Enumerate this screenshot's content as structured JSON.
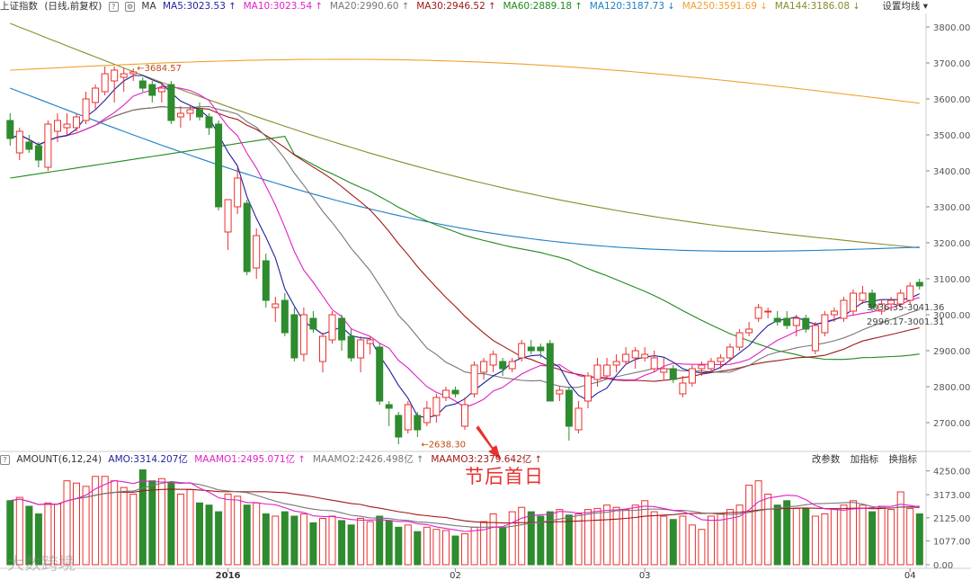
{
  "header": {
    "symbol": "上证指数",
    "mode": "(日线,前复权)",
    "help_icon": "?",
    "indicator": "MA",
    "ma": [
      {
        "label": "MA5:3023.53",
        "arrow": "↑",
        "color": "#1f1f9f"
      },
      {
        "label": "MA10:3023.54",
        "arrow": "↑",
        "color": "#e020c8"
      },
      {
        "label": "MA20:2990.60",
        "arrow": "↑",
        "color": "#777777"
      },
      {
        "label": "MA30:2946.52",
        "arrow": "↑",
        "color": "#a01818"
      },
      {
        "label": "MA60:2889.18",
        "arrow": "↑",
        "color": "#1f8a1f"
      },
      {
        "label": "MA120:3187.73",
        "arrow": "↓",
        "color": "#1d7fc4"
      },
      {
        "label": "MA250:3591.69",
        "arrow": "↓",
        "color": "#f0a030"
      },
      {
        "label": "MA144:3186.08",
        "arrow": "↓",
        "color": "#8a8a2a"
      }
    ],
    "settings_label": "设置均线",
    "settings_caret": "▾"
  },
  "sub_header": {
    "indicator": "AMOUNT(6,12,24)",
    "amo": "AMO:3314.207亿",
    "maamo": [
      {
        "label": "MAAMO1:2495.071亿",
        "arrow": "↑",
        "color": "#e020c8"
      },
      {
        "label": "MAAMO2:2426.498亿",
        "arrow": "↑",
        "color": "#777777"
      },
      {
        "label": "MAAMO3:2379.642亿",
        "arrow": "↑",
        "color": "#a01818"
      }
    ],
    "buttons": [
      "改参数",
      "加指标",
      "换指标"
    ]
  },
  "callout": "节后首日",
  "watermark": "大数跨境",
  "colors": {
    "up": "#e8312f",
    "down": "#2e8b2e",
    "grid": "#e6e6e6",
    "axis": "#888888"
  },
  "chart_data": {
    "type": "candlestick",
    "price_axis": {
      "ticks": [
        3800,
        3700,
        3600,
        3500,
        3400,
        3300,
        3200,
        3100,
        3000,
        2900,
        2800,
        2700
      ],
      "labels": [
        "3800.00",
        "3700.00",
        "3600.00",
        "3500.00",
        "3400.00",
        "3300.00",
        "3200.00",
        "3100.00",
        "3000.00",
        "2900.00",
        "2800.00",
        "2700.00"
      ],
      "range": [
        2630,
        3830
      ]
    },
    "volume_axis": {
      "ticks": [
        4250,
        3173,
        2125,
        1077,
        0
      ],
      "labels": [
        "4250.00",
        "3173.00",
        "2125.00",
        "1077.00",
        "0.00"
      ],
      "range": [
        0,
        4400
      ]
    },
    "date_labels": [
      {
        "label": "2016",
        "index": 23
      },
      {
        "label": "02",
        "index": 47
      },
      {
        "label": "03",
        "index": 67
      },
      {
        "label": "04",
        "index": 95
      }
    ],
    "annotations": [
      {
        "label": "←3684.57",
        "index": 13,
        "value": 3684.57
      },
      {
        "label": "←2638.30",
        "index": 43,
        "value": 2638.3
      }
    ],
    "last_labels": [
      "3036.35-3041.36",
      "2996.17-3001.31"
    ],
    "candles": [
      {
        "o": 3540,
        "h": 3560,
        "l": 3470,
        "c": 3490,
        "v": 2900
      },
      {
        "o": 3450,
        "h": 3520,
        "l": 3430,
        "c": 3510,
        "v": 3050
      },
      {
        "o": 3480,
        "h": 3500,
        "l": 3450,
        "c": 3460,
        "v": 2650
      },
      {
        "o": 3470,
        "h": 3480,
        "l": 3410,
        "c": 3430,
        "v": 2300
      },
      {
        "o": 3410,
        "h": 3540,
        "l": 3400,
        "c": 3530,
        "v": 2800
      },
      {
        "o": 3510,
        "h": 3560,
        "l": 3480,
        "c": 3540,
        "v": 2750
      },
      {
        "o": 3520,
        "h": 3560,
        "l": 3500,
        "c": 3530,
        "v": 3800
      },
      {
        "o": 3520,
        "h": 3560,
        "l": 3510,
        "c": 3550,
        "v": 3700
      },
      {
        "o": 3540,
        "h": 3620,
        "l": 3530,
        "c": 3600,
        "v": 3550
      },
      {
        "o": 3590,
        "h": 3640,
        "l": 3570,
        "c": 3630,
        "v": 4000
      },
      {
        "o": 3620,
        "h": 3690,
        "l": 3610,
        "c": 3670,
        "v": 4000
      },
      {
        "o": 3650,
        "h": 3690,
        "l": 3590,
        "c": 3680,
        "v": 3800
      },
      {
        "o": 3660,
        "h": 3685,
        "l": 3620,
        "c": 3670,
        "v": 3500
      },
      {
        "o": 3670,
        "h": 3685,
        "l": 3650,
        "c": 3675,
        "v": 3200
      },
      {
        "o": 3650,
        "h": 3660,
        "l": 3620,
        "c": 3630,
        "v": 4300
      },
      {
        "o": 3640,
        "h": 3650,
        "l": 3590,
        "c": 3610,
        "v": 3800
      },
      {
        "o": 3620,
        "h": 3640,
        "l": 3590,
        "c": 3630,
        "v": 3900
      },
      {
        "o": 3640,
        "h": 3650,
        "l": 3530,
        "c": 3540,
        "v": 3700
      },
      {
        "o": 3550,
        "h": 3580,
        "l": 3520,
        "c": 3560,
        "v": 3200
      },
      {
        "o": 3560,
        "h": 3580,
        "l": 3540,
        "c": 3570,
        "v": 3400
      },
      {
        "o": 3570,
        "h": 3590,
        "l": 3540,
        "c": 3550,
        "v": 2800
      },
      {
        "o": 3550,
        "h": 3560,
        "l": 3500,
        "c": 3520,
        "v": 2700
      },
      {
        "o": 3530,
        "h": 3540,
        "l": 3290,
        "c": 3300,
        "v": 2400
      },
      {
        "o": 3230,
        "h": 3320,
        "l": 3180,
        "c": 3320,
        "v": 3200
      },
      {
        "o": 3300,
        "h": 3410,
        "l": 3280,
        "c": 3380,
        "v": 3100
      },
      {
        "o": 3310,
        "h": 3320,
        "l": 3110,
        "c": 3120,
        "v": 2700
      },
      {
        "o": 3130,
        "h": 3240,
        "l": 3100,
        "c": 3220,
        "v": 2800
      },
      {
        "o": 3150,
        "h": 3170,
        "l": 3020,
        "c": 3040,
        "v": 2300
      },
      {
        "o": 3020,
        "h": 3050,
        "l": 2980,
        "c": 3030,
        "v": 2200
      },
      {
        "o": 3040,
        "h": 3060,
        "l": 2940,
        "c": 2950,
        "v": 2400
      },
      {
        "o": 3000,
        "h": 3020,
        "l": 2870,
        "c": 2880,
        "v": 2200
      },
      {
        "o": 2890,
        "h": 3020,
        "l": 2870,
        "c": 3000,
        "v": 2300
      },
      {
        "o": 2990,
        "h": 3010,
        "l": 2950,
        "c": 2960,
        "v": 1900
      },
      {
        "o": 2870,
        "h": 2950,
        "l": 2840,
        "c": 2940,
        "v": 2100
      },
      {
        "o": 2930,
        "h": 3010,
        "l": 2920,
        "c": 3000,
        "v": 2200
      },
      {
        "o": 2990,
        "h": 3000,
        "l": 2900,
        "c": 2930,
        "v": 2000
      },
      {
        "o": 2940,
        "h": 2960,
        "l": 2870,
        "c": 2880,
        "v": 1800
      },
      {
        "o": 2880,
        "h": 2940,
        "l": 2840,
        "c": 2930,
        "v": 2100
      },
      {
        "o": 2920,
        "h": 2940,
        "l": 2890,
        "c": 2930,
        "v": 1950
      },
      {
        "o": 2910,
        "h": 2920,
        "l": 2750,
        "c": 2760,
        "v": 2200
      },
      {
        "o": 2750,
        "h": 2760,
        "l": 2690,
        "c": 2740,
        "v": 2000
      },
      {
        "o": 2720,
        "h": 2730,
        "l": 2640,
        "c": 2660,
        "v": 1700
      },
      {
        "o": 2680,
        "h": 2760,
        "l": 2670,
        "c": 2750,
        "v": 1800
      },
      {
        "o": 2720,
        "h": 2730,
        "l": 2660,
        "c": 2680,
        "v": 1500
      },
      {
        "o": 2700,
        "h": 2760,
        "l": 2690,
        "c": 2740,
        "v": 1700
      },
      {
        "o": 2720,
        "h": 2780,
        "l": 2700,
        "c": 2770,
        "v": 1600
      },
      {
        "o": 2770,
        "h": 2800,
        "l": 2760,
        "c": 2790,
        "v": 1550
      },
      {
        "o": 2790,
        "h": 2800,
        "l": 2770,
        "c": 2780,
        "v": 1300
      },
      {
        "o": 2690,
        "h": 2770,
        "l": 2680,
        "c": 2750,
        "v": 1400
      },
      {
        "o": 2780,
        "h": 2870,
        "l": 2770,
        "c": 2860,
        "v": 1700
      },
      {
        "o": 2840,
        "h": 2880,
        "l": 2820,
        "c": 2870,
        "v": 1950
      },
      {
        "o": 2860,
        "h": 2900,
        "l": 2840,
        "c": 2890,
        "v": 2300
      },
      {
        "o": 2870,
        "h": 2880,
        "l": 2830,
        "c": 2850,
        "v": 1700
      },
      {
        "o": 2850,
        "h": 2880,
        "l": 2840,
        "c": 2870,
        "v": 2400
      },
      {
        "o": 2880,
        "h": 2930,
        "l": 2870,
        "c": 2920,
        "v": 2600
      },
      {
        "o": 2910,
        "h": 2930,
        "l": 2890,
        "c": 2900,
        "v": 2400
      },
      {
        "o": 2910,
        "h": 2920,
        "l": 2880,
        "c": 2900,
        "v": 2200
      },
      {
        "o": 2920,
        "h": 2930,
        "l": 2760,
        "c": 2760,
        "v": 2400
      },
      {
        "o": 2780,
        "h": 2800,
        "l": 2760,
        "c": 2790,
        "v": 2500
      },
      {
        "o": 2790,
        "h": 2800,
        "l": 2650,
        "c": 2690,
        "v": 2250
      },
      {
        "o": 2680,
        "h": 2760,
        "l": 2670,
        "c": 2740,
        "v": 2300
      },
      {
        "o": 2760,
        "h": 2840,
        "l": 2740,
        "c": 2830,
        "v": 2500
      },
      {
        "o": 2820,
        "h": 2880,
        "l": 2800,
        "c": 2860,
        "v": 2550
      },
      {
        "o": 2830,
        "h": 2880,
        "l": 2820,
        "c": 2860,
        "v": 2700
      },
      {
        "o": 2860,
        "h": 2890,
        "l": 2840,
        "c": 2870,
        "v": 2600
      },
      {
        "o": 2870,
        "h": 2910,
        "l": 2860,
        "c": 2890,
        "v": 2500
      },
      {
        "o": 2880,
        "h": 2910,
        "l": 2850,
        "c": 2900,
        "v": 2700
      },
      {
        "o": 2880,
        "h": 2910,
        "l": 2870,
        "c": 2890,
        "v": 2900
      },
      {
        "o": 2850,
        "h": 2900,
        "l": 2840,
        "c": 2880,
        "v": 2400
      },
      {
        "o": 2840,
        "h": 2880,
        "l": 2820,
        "c": 2850,
        "v": 2200
      },
      {
        "o": 2850,
        "h": 2860,
        "l": 2810,
        "c": 2820,
        "v": 2050
      },
      {
        "o": 2780,
        "h": 2830,
        "l": 2770,
        "c": 2810,
        "v": 2200
      },
      {
        "o": 2810,
        "h": 2860,
        "l": 2800,
        "c": 2850,
        "v": 1800
      },
      {
        "o": 2850,
        "h": 2870,
        "l": 2830,
        "c": 2860,
        "v": 1600
      },
      {
        "o": 2850,
        "h": 2880,
        "l": 2840,
        "c": 2870,
        "v": 2200
      },
      {
        "o": 2870,
        "h": 2890,
        "l": 2850,
        "c": 2880,
        "v": 2300
      },
      {
        "o": 2880,
        "h": 2920,
        "l": 2870,
        "c": 2910,
        "v": 2500
      },
      {
        "o": 2910,
        "h": 2960,
        "l": 2900,
        "c": 2950,
        "v": 2700
      },
      {
        "o": 2950,
        "h": 2980,
        "l": 2940,
        "c": 2960,
        "v": 3600
      },
      {
        "o": 2990,
        "h": 3030,
        "l": 2980,
        "c": 3020,
        "v": 3800
      },
      {
        "o": 3010,
        "h": 3020,
        "l": 2990,
        "c": 3010,
        "v": 3200
      },
      {
        "o": 2990,
        "h": 3010,
        "l": 2970,
        "c": 2980,
        "v": 2700
      },
      {
        "o": 2990,
        "h": 3010,
        "l": 2960,
        "c": 2970,
        "v": 2900
      },
      {
        "o": 2970,
        "h": 3000,
        "l": 2940,
        "c": 2990,
        "v": 2550
      },
      {
        "o": 2990,
        "h": 3000,
        "l": 2950,
        "c": 2960,
        "v": 2550
      },
      {
        "o": 2900,
        "h": 2980,
        "l": 2890,
        "c": 2970,
        "v": 2200
      },
      {
        "o": 2950,
        "h": 3010,
        "l": 2940,
        "c": 3000,
        "v": 2300
      },
      {
        "o": 3000,
        "h": 3020,
        "l": 2980,
        "c": 3010,
        "v": 2500
      },
      {
        "o": 2990,
        "h": 3050,
        "l": 2980,
        "c": 3040,
        "v": 2700
      },
      {
        "o": 3010,
        "h": 3070,
        "l": 3000,
        "c": 3060,
        "v": 2900
      },
      {
        "o": 3040,
        "h": 3080,
        "l": 3030,
        "c": 3060,
        "v": 2700
      },
      {
        "o": 3060,
        "h": 3070,
        "l": 3010,
        "c": 3020,
        "v": 2400
      },
      {
        "o": 3010,
        "h": 3040,
        "l": 3000,
        "c": 3030,
        "v": 2650
      },
      {
        "o": 3030,
        "h": 3050,
        "l": 3010,
        "c": 3040,
        "v": 2500
      },
      {
        "o": 3030,
        "h": 3070,
        "l": 3020,
        "c": 3060,
        "v": 3300
      },
      {
        "o": 3040,
        "h": 3090,
        "l": 3030,
        "c": 3080,
        "v": 2550
      },
      {
        "o": 3090,
        "h": 3100,
        "l": 3070,
        "c": 3080,
        "v": 2300
      }
    ]
  }
}
